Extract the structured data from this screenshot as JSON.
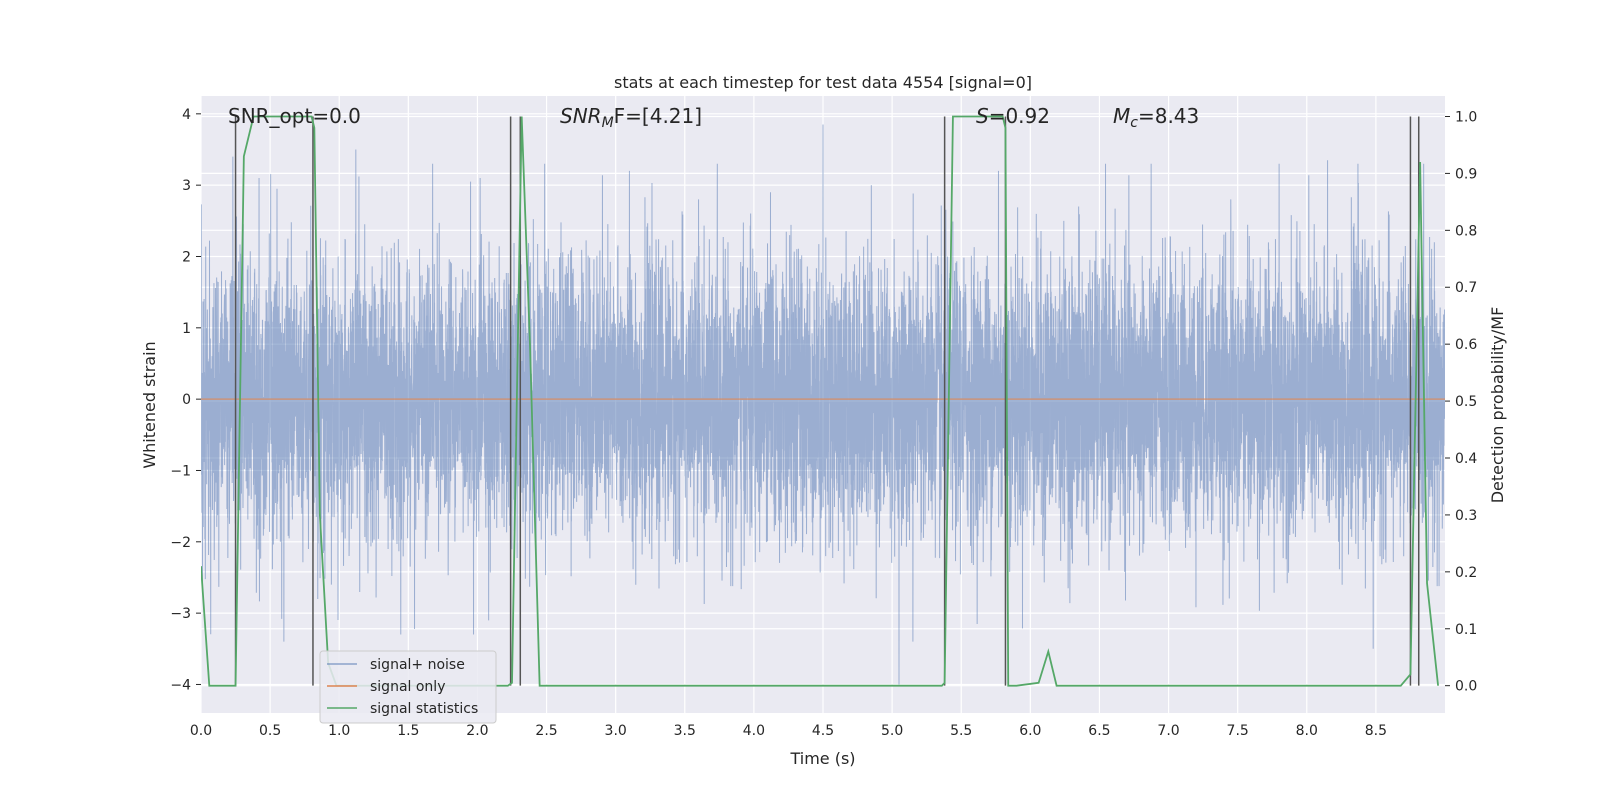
{
  "chart_data": {
    "type": "line",
    "title": "stats at each timestep for test data 4554 [signal=0]",
    "xlabel": "Time (s)",
    "ylabel": "Whitened strain",
    "y2label": "Detection probability/MF",
    "xlim": [
      0.0,
      9.0
    ],
    "ylim": [
      -4.4,
      4.25
    ],
    "y2lim": [
      -0.048,
      1.036
    ],
    "x_ticks": [
      0.0,
      0.5,
      1.0,
      1.5,
      2.0,
      2.5,
      3.0,
      3.5,
      4.0,
      4.5,
      5.0,
      5.5,
      6.0,
      6.5,
      7.0,
      7.5,
      8.0,
      8.5
    ],
    "x_tick_labels": [
      "0.0",
      "0.5",
      "1.0",
      "1.5",
      "2.0",
      "2.5",
      "3.0",
      "3.5",
      "4.0",
      "4.5",
      "5.0",
      "5.5",
      "6.0",
      "6.5",
      "7.0",
      "7.5",
      "8.0",
      "8.5"
    ],
    "y_ticks": [
      -4,
      -3,
      -2,
      -1,
      0,
      1,
      2,
      3,
      4
    ],
    "y_tick_labels": [
      "−4",
      "−3",
      "−2",
      "−1",
      "0",
      "1",
      "2",
      "3",
      "4"
    ],
    "y2_ticks": [
      0.0,
      0.1,
      0.2,
      0.3,
      0.4,
      0.5,
      0.6,
      0.7,
      0.8,
      0.9,
      1.0
    ],
    "y2_tick_labels": [
      "0.0",
      "0.1",
      "0.2",
      "0.3",
      "0.4",
      "0.5",
      "0.6",
      "0.7",
      "0.8",
      "0.9",
      "1.0"
    ],
    "annotations": {
      "snr_opt": "SNR_opt=0.0",
      "snr_mf_sym": "SNR",
      "snr_mf_sub": "M",
      "snr_mf_rest": "F=[4.21]",
      "s_sym": "S",
      "s_rest": "=0.92",
      "mc_sym": "M",
      "mc_sub": "c",
      "mc_rest": "=8.43"
    },
    "legend": {
      "position": "lower-left",
      "entries": [
        "signal+ noise",
        "signal only",
        "signal statistics"
      ]
    },
    "series": [
      {
        "name": "signal+ noise",
        "color": "#4c72b0",
        "kind": "noise",
        "sample_rate": 1024,
        "duration": 9.0,
        "spikes": [
          [
            0.23,
            3.4
          ],
          [
            0.42,
            3.1
          ],
          [
            0.55,
            2.95
          ],
          [
            0.6,
            -3.4
          ],
          [
            1.12,
            3.5
          ],
          [
            1.95,
            3.05
          ],
          [
            2.02,
            3.1
          ],
          [
            3.1,
            3.2
          ],
          [
            3.6,
            2.8
          ],
          [
            4.12,
            2.9
          ],
          [
            4.5,
            3.85
          ],
          [
            4.52,
            -2.2
          ],
          [
            4.85,
            3.0
          ],
          [
            5.05,
            -4.0
          ],
          [
            5.15,
            -3.4
          ],
          [
            5.38,
            -3.2
          ],
          [
            5.77,
            3.2
          ],
          [
            6.35,
            2.7
          ],
          [
            7.45,
            2.8
          ],
          [
            7.8,
            3.3
          ],
          [
            8.15,
            3.35
          ],
          [
            8.37,
            3.3
          ],
          [
            8.48,
            -3.5
          ],
          [
            8.83,
            2.0
          ]
        ]
      },
      {
        "name": "signal only",
        "color": "#dd8452",
        "kind": "flat",
        "value": 0.0
      },
      {
        "name": "signal statistics",
        "color": "#55a868",
        "kind": "probability",
        "x": [
          0.0,
          0.06,
          0.25,
          0.31,
          0.38,
          0.8,
          0.82,
          0.86,
          0.92,
          0.98,
          2.15,
          2.22,
          2.25,
          2.32,
          2.38,
          2.45,
          2.55,
          5.36,
          5.38,
          5.44,
          5.8,
          5.82,
          5.84,
          5.9,
          6.06,
          6.13,
          6.19,
          6.25,
          8.68,
          8.75,
          8.82,
          8.87,
          8.95
        ],
        "values": [
          0.21,
          0.0,
          0.0,
          0.93,
          1.0,
          1.0,
          0.98,
          0.3,
          0.04,
          0.0,
          0.0,
          0.0,
          0.005,
          1.0,
          0.6,
          0.0,
          0.0,
          0.0,
          0.005,
          1.0,
          1.0,
          0.98,
          0.0,
          0.0,
          0.005,
          0.06,
          0.0,
          0.0,
          0.0,
          0.02,
          0.92,
          0.18,
          0.0
        ]
      }
    ],
    "vertical_markers": [
      0.25,
      0.81,
      2.24,
      2.31,
      5.38,
      5.82,
      8.75,
      8.81
    ]
  }
}
